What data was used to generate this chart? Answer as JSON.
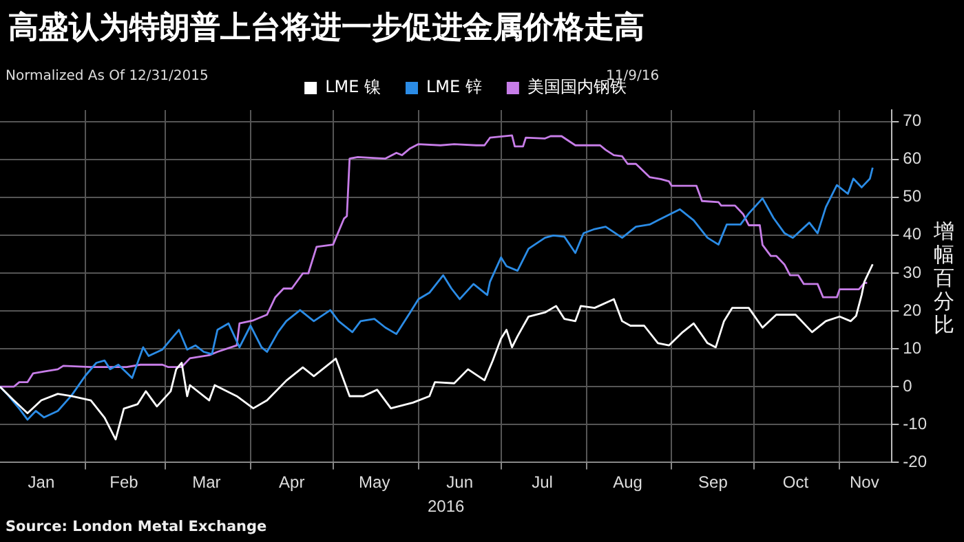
{
  "chart_data": {
    "type": "line",
    "title": "高盛认为特朗普上台将进一步促进金属价格走高",
    "subtitle": "Normalized As Of 12/31/2015",
    "xlabel": "2016",
    "ylabel": "增幅百分比",
    "annotations": [
      "11/9/16",
      "Source: London Metal Exchange"
    ],
    "legend": "top",
    "grid": true,
    "marker": "none",
    "line_style": "solid",
    "xlim": [
      "2016-01-01",
      "2016-11-20"
    ],
    "ylim": [
      -20,
      73
    ],
    "xticks": [
      {
        "value": "2016-02-01",
        "label": null
      },
      {
        "value": "2016-03-01",
        "label": null
      },
      {
        "value": "2016-04-01",
        "label": null
      },
      {
        "value": "2016-05-01",
        "label": null
      },
      {
        "value": "2016-06-01",
        "label": null
      },
      {
        "value": "2016-07-01",
        "label": null
      },
      {
        "value": "2016-08-01",
        "label": null
      },
      {
        "value": "2016-09-01",
        "label": null
      },
      {
        "value": "2016-10-01",
        "label": null
      },
      {
        "value": "2016-11-01",
        "label": null
      },
      {
        "value": "2016-01-16",
        "label": "Jan"
      },
      {
        "value": "2016-02-15",
        "label": "Feb"
      },
      {
        "value": "2016-03-16",
        "label": "Mar"
      },
      {
        "value": "2016-04-16",
        "label": "Apr"
      },
      {
        "value": "2016-05-16",
        "label": "May"
      },
      {
        "value": "2016-06-16",
        "label": "Jun"
      },
      {
        "value": "2016-07-16",
        "label": "Jul"
      },
      {
        "value": "2016-08-16",
        "label": "Aug"
      },
      {
        "value": "2016-09-16",
        "label": "Sep"
      },
      {
        "value": "2016-10-16",
        "label": "Oct"
      },
      {
        "value": "2016-11-10",
        "label": "Nov"
      }
    ],
    "yticks": [
      -20,
      -10,
      0,
      10,
      20,
      30,
      40,
      50,
      60,
      70
    ],
    "series": [
      {
        "name": "LME 镍",
        "color": "#ffffff",
        "x": [
          "2016-01-01",
          "2016-01-06",
          "2016-01-11",
          "2016-01-16",
          "2016-01-22",
          "2016-01-27",
          "2016-02-03",
          "2016-02-08",
          "2016-02-12",
          "2016-02-15",
          "2016-02-20",
          "2016-02-23",
          "2016-02-27",
          "2016-03-03",
          "2016-03-05",
          "2016-03-07",
          "2016-03-09",
          "2016-03-10",
          "2016-03-17",
          "2016-03-19",
          "2016-03-27",
          "2016-04-02",
          "2016-04-07",
          "2016-04-14",
          "2016-04-20",
          "2016-04-24",
          "2016-05-02",
          "2016-05-07",
          "2016-05-12",
          "2016-05-17",
          "2016-05-22",
          "2016-05-30",
          "2016-06-05",
          "2016-06-07",
          "2016-06-14",
          "2016-06-19",
          "2016-06-25",
          "2016-06-28",
          "2016-07-01",
          "2016-07-03",
          "2016-07-05",
          "2016-07-07",
          "2016-07-11",
          "2016-07-17",
          "2016-07-21",
          "2016-07-24",
          "2016-07-28",
          "2016-07-30",
          "2016-08-04",
          "2016-08-11",
          "2016-08-14",
          "2016-08-17",
          "2016-08-22",
          "2016-08-27",
          "2016-08-31",
          "2016-09-05",
          "2016-09-09",
          "2016-09-14",
          "2016-09-17",
          "2016-09-20",
          "2016-09-23",
          "2016-09-29",
          "2016-10-04",
          "2016-10-09",
          "2016-10-16",
          "2016-10-22",
          "2016-10-27",
          "2016-11-01",
          "2016-11-05",
          "2016-11-07",
          "2016-11-09",
          "2016-11-10",
          "2016-11-13"
        ],
        "values": [
          0,
          -3.6,
          -7,
          -3.6,
          -1.9,
          -2.5,
          -3.6,
          -8.2,
          -13.9,
          -5.8,
          -4.6,
          -1.2,
          -5.2,
          -1.2,
          4.6,
          6.3,
          -2.5,
          0.4,
          -3.6,
          0.4,
          -2.5,
          -5.7,
          -3.6,
          1.6,
          5.1,
          2.8,
          7.4,
          -2.5,
          -2.5,
          -0.8,
          -5.7,
          -4.2,
          -2.5,
          1.2,
          0.9,
          4.6,
          1.7,
          6.9,
          12.7,
          15,
          10.4,
          13.3,
          18.5,
          19.6,
          21.3,
          17.9,
          17.3,
          21.3,
          20.8,
          23.1,
          17.3,
          16.1,
          16.1,
          11.5,
          10.9,
          14.4,
          16.7,
          11.5,
          10.4,
          17.3,
          20.8,
          20.8,
          15.6,
          19,
          19,
          14.4,
          17.3,
          18.5,
          17.3,
          18.7,
          24.2,
          27.7,
          32.3
        ]
      },
      {
        "name": "LME 锌",
        "color": "#2b8ce6",
        "x": [
          "2016-01-01",
          "2016-01-04",
          "2016-01-08",
          "2016-01-11",
          "2016-01-14",
          "2016-01-17",
          "2016-01-22",
          "2016-01-27",
          "2016-02-01",
          "2016-02-05",
          "2016-02-08",
          "2016-02-10",
          "2016-02-13",
          "2016-02-18",
          "2016-02-22",
          "2016-02-24",
          "2016-02-29",
          "2016-03-06",
          "2016-03-09",
          "2016-03-12",
          "2016-03-15",
          "2016-03-18",
          "2016-03-20",
          "2016-03-24",
          "2016-03-28",
          "2016-04-01",
          "2016-04-05",
          "2016-04-07",
          "2016-04-11",
          "2016-04-14",
          "2016-04-19",
          "2016-04-24",
          "2016-04-30",
          "2016-05-03",
          "2016-05-08",
          "2016-05-11",
          "2016-05-16",
          "2016-05-20",
          "2016-05-24",
          "2016-05-29",
          "2016-06-01",
          "2016-06-05",
          "2016-06-10",
          "2016-06-13",
          "2016-06-16",
          "2016-06-21",
          "2016-06-26",
          "2016-06-27",
          "2016-07-01",
          "2016-07-03",
          "2016-07-07",
          "2016-07-11",
          "2016-07-17",
          "2016-07-20",
          "2016-07-24",
          "2016-07-28",
          "2016-07-31",
          "2016-08-04",
          "2016-08-08",
          "2016-08-14",
          "2016-08-19",
          "2016-08-24",
          "2016-08-27",
          "2016-09-04",
          "2016-09-09",
          "2016-09-14",
          "2016-09-18",
          "2016-09-21",
          "2016-09-26",
          "2016-09-29",
          "2016-10-04",
          "2016-10-08",
          "2016-10-12",
          "2016-10-15",
          "2016-10-21",
          "2016-10-24",
          "2016-10-27",
          "2016-10-31",
          "2016-11-04",
          "2016-11-06",
          "2016-11-09",
          "2016-11-12",
          "2016-11-13"
        ],
        "values": [
          0,
          -2.3,
          -5.8,
          -8.7,
          -6.4,
          -8.1,
          -6.4,
          -2.3,
          2.9,
          6.3,
          6.9,
          4.6,
          5.8,
          2.3,
          10.4,
          8.1,
          9.8,
          15,
          9.8,
          10.9,
          9.2,
          8.6,
          15,
          16.7,
          10.4,
          16.1,
          10.4,
          9.2,
          14.4,
          17.3,
          20.2,
          17.3,
          20.2,
          17.3,
          14.4,
          17.3,
          17.9,
          15.6,
          13.9,
          19.6,
          23.1,
          24.8,
          29.4,
          25.9,
          23.1,
          27.1,
          24.2,
          27.7,
          34.1,
          31.8,
          30.6,
          36.4,
          39.3,
          39.9,
          39.6,
          35.3,
          40.5,
          41.6,
          42.2,
          39.3,
          42.2,
          42.8,
          43.9,
          46.8,
          43.9,
          39.3,
          37.5,
          42.8,
          42.8,
          45.7,
          49.7,
          44.5,
          40.5,
          39.3,
          43.3,
          40.5,
          47.4,
          53.2,
          50.9,
          54.9,
          52.6,
          54.9,
          57.8
        ]
      },
      {
        "name": "美国国内钢铁",
        "color": "#c77de8",
        "x": [
          "2016-01-01",
          "2016-01-06",
          "2016-01-08",
          "2016-01-11",
          "2016-01-13",
          "2016-01-17",
          "2016-01-22",
          "2016-01-24",
          "2016-02-03",
          "2016-02-16",
          "2016-02-21",
          "2016-02-29",
          "2016-03-02",
          "2016-03-07",
          "2016-03-10",
          "2016-03-17",
          "2016-03-20",
          "2016-03-27",
          "2016-03-28",
          "2016-04-02",
          "2016-04-07",
          "2016-04-10",
          "2016-04-13",
          "2016-04-16",
          "2016-04-20",
          "2016-04-22",
          "2016-04-25",
          "2016-05-01",
          "2016-05-05",
          "2016-05-06",
          "2016-05-07",
          "2016-05-10",
          "2016-05-20",
          "2016-05-24",
          "2016-05-26",
          "2016-05-29",
          "2016-06-01",
          "2016-06-09",
          "2016-06-14",
          "2016-06-22",
          "2016-06-25",
          "2016-06-27",
          "2016-07-05",
          "2016-07-06",
          "2016-07-09",
          "2016-07-10",
          "2016-07-17",
          "2016-07-19",
          "2016-07-23",
          "2016-07-28",
          "2016-08-06",
          "2016-08-08",
          "2016-08-11",
          "2016-08-14",
          "2016-08-16",
          "2016-08-19",
          "2016-08-24",
          "2016-08-28",
          "2016-08-31",
          "2016-09-01",
          "2016-09-10",
          "2016-09-12",
          "2016-09-18",
          "2016-09-19",
          "2016-09-24",
          "2016-09-27",
          "2016-09-29",
          "2016-10-03",
          "2016-10-04",
          "2016-10-07",
          "2016-10-09",
          "2016-10-12",
          "2016-10-14",
          "2016-10-17",
          "2016-10-19",
          "2016-10-24",
          "2016-10-26",
          "2016-10-31",
          "2016-11-01",
          "2016-11-08",
          "2016-11-10",
          "2016-11-11"
        ],
        "values": [
          0,
          0,
          1.2,
          1.2,
          3.5,
          4,
          4.6,
          5.5,
          5.2,
          5.2,
          5.8,
          5.8,
          5.2,
          5.2,
          7.5,
          8.3,
          9.2,
          10.9,
          16.7,
          17.5,
          19,
          23.6,
          25.9,
          25.9,
          29.9,
          29.9,
          36.9,
          37.5,
          44.4,
          45,
          60.2,
          60.6,
          60.2,
          61.7,
          61.1,
          62.9,
          64,
          63.7,
          64,
          63.7,
          63.7,
          65.7,
          66.3,
          63.4,
          63.4,
          65.7,
          65.5,
          66.1,
          66.1,
          63.7,
          63.7,
          62.5,
          61.1,
          60.8,
          58.8,
          58.8,
          55.3,
          54.8,
          54.2,
          53,
          53,
          49,
          48.7,
          47.8,
          47.8,
          45.5,
          42.6,
          42.6,
          37.4,
          34.5,
          34.5,
          32.2,
          29.4,
          29.4,
          27.1,
          27.1,
          23.6,
          23.6,
          25.7,
          25.7,
          27.4,
          27.4
        ]
      }
    ]
  }
}
